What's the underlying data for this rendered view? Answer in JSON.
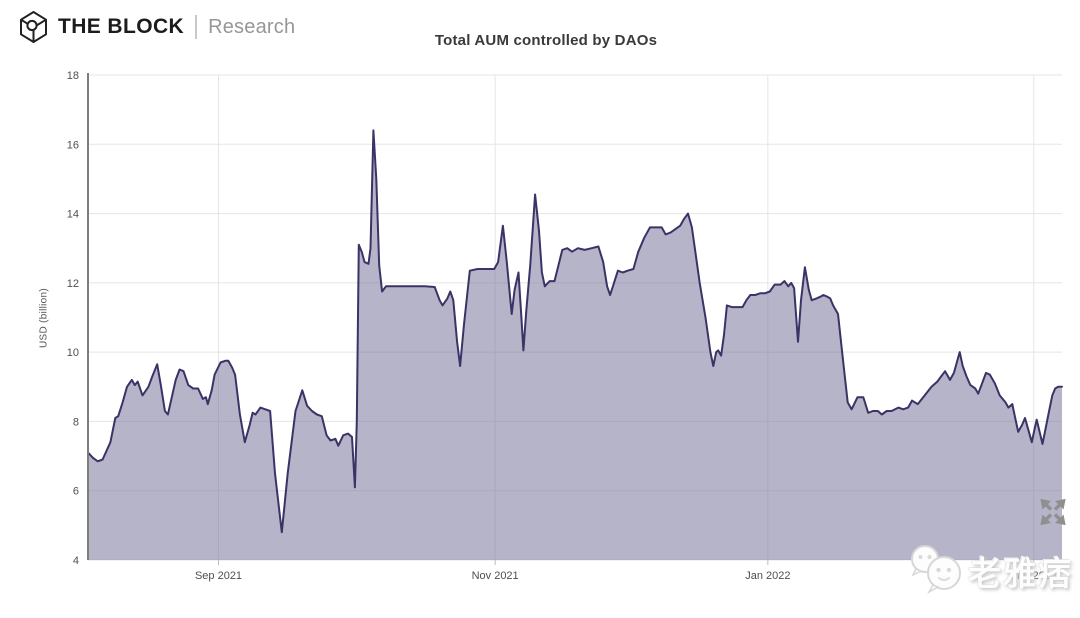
{
  "header": {
    "brand": "THE BLOCK",
    "suffix": "Research"
  },
  "chart_data": {
    "type": "area",
    "title": "Total AUM controlled by DAOs",
    "xlabel": "",
    "ylabel": "USD (billion)",
    "ylim": [
      4,
      18
    ],
    "yticks": [
      4,
      6,
      8,
      10,
      12,
      14,
      16,
      18
    ],
    "xticks": [
      {
        "label": "Sep 2021",
        "pos": 0.134
      },
      {
        "label": "Nov 2021",
        "pos": 0.418
      },
      {
        "label": "Jan 2022",
        "pos": 0.698
      },
      {
        "label": "Mar 2022",
        "pos": 0.971
      }
    ],
    "grid": true,
    "legend": "none",
    "line_color": "#3b3266",
    "fill_color": "rgba(122,118,156,0.55)",
    "grid_color": "#e5e5e5",
    "axis_color": "#7d7d7d",
    "tick_label_color": "#4f4f4f",
    "points": [
      [
        0,
        7.1
      ],
      [
        0.005,
        6.95
      ],
      [
        0.01,
        6.85
      ],
      [
        0.015,
        6.9
      ],
      [
        0.023,
        7.4
      ],
      [
        0.028,
        8.1
      ],
      [
        0.031,
        8.15
      ],
      [
        0.035,
        8.5
      ],
      [
        0.04,
        9.0
      ],
      [
        0.045,
        9.2
      ],
      [
        0.048,
        9.05
      ],
      [
        0.051,
        9.15
      ],
      [
        0.056,
        8.75
      ],
      [
        0.062,
        9.0
      ],
      [
        0.066,
        9.3
      ],
      [
        0.071,
        9.65
      ],
      [
        0.075,
        9.0
      ],
      [
        0.079,
        8.3
      ],
      [
        0.082,
        8.2
      ],
      [
        0.086,
        8.7
      ],
      [
        0.09,
        9.2
      ],
      [
        0.094,
        9.5
      ],
      [
        0.098,
        9.45
      ],
      [
        0.103,
        9.05
      ],
      [
        0.108,
        8.95
      ],
      [
        0.113,
        8.95
      ],
      [
        0.118,
        8.65
      ],
      [
        0.121,
        8.7
      ],
      [
        0.123,
        8.5
      ],
      [
        0.127,
        8.9
      ],
      [
        0.13,
        9.35
      ],
      [
        0.136,
        9.7
      ],
      [
        0.141,
        9.75
      ],
      [
        0.144,
        9.75
      ],
      [
        0.148,
        9.55
      ],
      [
        0.151,
        9.35
      ],
      [
        0.156,
        8.2
      ],
      [
        0.161,
        7.4
      ],
      [
        0.166,
        7.9
      ],
      [
        0.169,
        8.25
      ],
      [
        0.172,
        8.2
      ],
      [
        0.177,
        8.4
      ],
      [
        0.182,
        8.35
      ],
      [
        0.187,
        8.3
      ],
      [
        0.192,
        6.5
      ],
      [
        0.199,
        4.8
      ],
      [
        0.205,
        6.5
      ],
      [
        0.213,
        8.3
      ],
      [
        0.22,
        8.9
      ],
      [
        0.225,
        8.45
      ],
      [
        0.23,
        8.3
      ],
      [
        0.235,
        8.2
      ],
      [
        0.24,
        8.15
      ],
      [
        0.245,
        7.6
      ],
      [
        0.249,
        7.45
      ],
      [
        0.254,
        7.5
      ],
      [
        0.257,
        7.3
      ],
      [
        0.262,
        7.6
      ],
      [
        0.267,
        7.65
      ],
      [
        0.271,
        7.55
      ],
      [
        0.274,
        6.1
      ],
      [
        0.276,
        8.0
      ],
      [
        0.278,
        13.1
      ],
      [
        0.281,
        12.9
      ],
      [
        0.284,
        12.6
      ],
      [
        0.288,
        12.55
      ],
      [
        0.29,
        13.0
      ],
      [
        0.293,
        16.4
      ],
      [
        0.296,
        15.0
      ],
      [
        0.299,
        12.5
      ],
      [
        0.302,
        11.75
      ],
      [
        0.306,
        11.9
      ],
      [
        0.315,
        11.9
      ],
      [
        0.326,
        11.9
      ],
      [
        0.336,
        11.9
      ],
      [
        0.346,
        11.9
      ],
      [
        0.356,
        11.88
      ],
      [
        0.361,
        11.5
      ],
      [
        0.364,
        11.35
      ],
      [
        0.369,
        11.55
      ],
      [
        0.372,
        11.75
      ],
      [
        0.375,
        11.5
      ],
      [
        0.379,
        10.3
      ],
      [
        0.382,
        9.6
      ],
      [
        0.386,
        10.8
      ],
      [
        0.392,
        12.35
      ],
      [
        0.4,
        12.4
      ],
      [
        0.409,
        12.4
      ],
      [
        0.417,
        12.4
      ],
      [
        0.421,
        12.6
      ],
      [
        0.426,
        13.65
      ],
      [
        0.43,
        12.6
      ],
      [
        0.435,
        11.1
      ],
      [
        0.438,
        11.8
      ],
      [
        0.442,
        12.3
      ],
      [
        0.445,
        11.0
      ],
      [
        0.447,
        10.05
      ],
      [
        0.45,
        11.2
      ],
      [
        0.454,
        12.5
      ],
      [
        0.459,
        14.55
      ],
      [
        0.463,
        13.5
      ],
      [
        0.466,
        12.3
      ],
      [
        0.469,
        11.9
      ],
      [
        0.474,
        12.05
      ],
      [
        0.479,
        12.05
      ],
      [
        0.483,
        12.5
      ],
      [
        0.487,
        12.95
      ],
      [
        0.492,
        13.0
      ],
      [
        0.497,
        12.9
      ],
      [
        0.503,
        13.0
      ],
      [
        0.51,
        12.95
      ],
      [
        0.517,
        13.0
      ],
      [
        0.524,
        13.05
      ],
      [
        0.529,
        12.6
      ],
      [
        0.533,
        11.9
      ],
      [
        0.536,
        11.65
      ],
      [
        0.54,
        12.0
      ],
      [
        0.544,
        12.35
      ],
      [
        0.549,
        12.3
      ],
      [
        0.554,
        12.35
      ],
      [
        0.56,
        12.4
      ],
      [
        0.565,
        12.9
      ],
      [
        0.571,
        13.3
      ],
      [
        0.577,
        13.6
      ],
      [
        0.583,
        13.6
      ],
      [
        0.589,
        13.6
      ],
      [
        0.593,
        13.4
      ],
      [
        0.598,
        13.45
      ],
      [
        0.603,
        13.55
      ],
      [
        0.608,
        13.65
      ],
      [
        0.612,
        13.85
      ],
      [
        0.616,
        14.0
      ],
      [
        0.62,
        13.6
      ],
      [
        0.624,
        12.8
      ],
      [
        0.628,
        12.0
      ],
      [
        0.634,
        11.0
      ],
      [
        0.639,
        10.0
      ],
      [
        0.642,
        9.6
      ],
      [
        0.645,
        10.0
      ],
      [
        0.647,
        10.05
      ],
      [
        0.65,
        9.9
      ],
      [
        0.653,
        10.5
      ],
      [
        0.656,
        11.35
      ],
      [
        0.661,
        11.3
      ],
      [
        0.666,
        11.3
      ],
      [
        0.672,
        11.3
      ],
      [
        0.676,
        11.5
      ],
      [
        0.68,
        11.65
      ],
      [
        0.685,
        11.65
      ],
      [
        0.69,
        11.7
      ],
      [
        0.695,
        11.7
      ],
      [
        0.7,
        11.75
      ],
      [
        0.705,
        11.95
      ],
      [
        0.711,
        11.95
      ],
      [
        0.715,
        12.05
      ],
      [
        0.719,
        11.9
      ],
      [
        0.722,
        12.0
      ],
      [
        0.725,
        11.85
      ],
      [
        0.729,
        10.3
      ],
      [
        0.732,
        11.5
      ],
      [
        0.736,
        12.45
      ],
      [
        0.74,
        11.8
      ],
      [
        0.743,
        11.5
      ],
      [
        0.748,
        11.55
      ],
      [
        0.752,
        11.6
      ],
      [
        0.755,
        11.65
      ],
      [
        0.759,
        11.6
      ],
      [
        0.762,
        11.55
      ],
      [
        0.765,
        11.35
      ],
      [
        0.77,
        11.1
      ],
      [
        0.775,
        9.8
      ],
      [
        0.78,
        8.55
      ],
      [
        0.784,
        8.35
      ],
      [
        0.79,
        8.7
      ],
      [
        0.796,
        8.7
      ],
      [
        0.801,
        8.25
      ],
      [
        0.806,
        8.3
      ],
      [
        0.811,
        8.3
      ],
      [
        0.815,
        8.2
      ],
      [
        0.82,
        8.3
      ],
      [
        0.825,
        8.3
      ],
      [
        0.832,
        8.4
      ],
      [
        0.837,
        8.35
      ],
      [
        0.842,
        8.4
      ],
      [
        0.846,
        8.6
      ],
      [
        0.852,
        8.5
      ],
      [
        0.859,
        8.75
      ],
      [
        0.866,
        9.0
      ],
      [
        0.872,
        9.15
      ],
      [
        0.876,
        9.3
      ],
      [
        0.88,
        9.45
      ],
      [
        0.885,
        9.2
      ],
      [
        0.889,
        9.4
      ],
      [
        0.892,
        9.7
      ],
      [
        0.895,
        10.0
      ],
      [
        0.898,
        9.6
      ],
      [
        0.902,
        9.3
      ],
      [
        0.906,
        9.05
      ],
      [
        0.911,
        8.95
      ],
      [
        0.914,
        8.8
      ],
      [
        0.918,
        9.1
      ],
      [
        0.922,
        9.4
      ],
      [
        0.926,
        9.35
      ],
      [
        0.931,
        9.1
      ],
      [
        0.936,
        8.75
      ],
      [
        0.942,
        8.55
      ],
      [
        0.945,
        8.4
      ],
      [
        0.949,
        8.5
      ],
      [
        0.952,
        8.1
      ],
      [
        0.955,
        7.7
      ],
      [
        0.959,
        7.9
      ],
      [
        0.962,
        8.1
      ],
      [
        0.966,
        7.7
      ],
      [
        0.969,
        7.4
      ],
      [
        0.972,
        7.8
      ],
      [
        0.974,
        8.05
      ],
      [
        0.977,
        7.7
      ],
      [
        0.98,
        7.35
      ],
      [
        0.986,
        8.2
      ],
      [
        0.99,
        8.75
      ],
      [
        0.993,
        8.95
      ],
      [
        0.996,
        9.0
      ],
      [
        1,
        9.0
      ]
    ]
  },
  "watermark": {
    "text": "老雅痞"
  },
  "icons": {
    "logo": "the-block-cube-icon",
    "expand": "expand-arrows-icon",
    "watermark": "wechat-icon"
  }
}
